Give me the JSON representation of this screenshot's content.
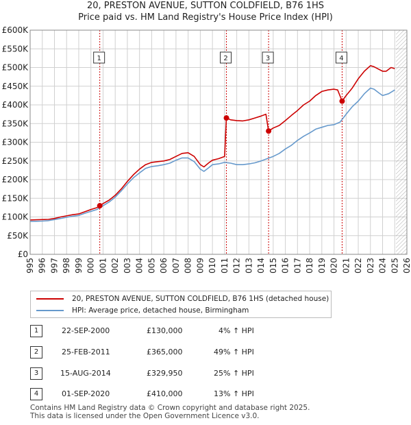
{
  "title": {
    "line1": "20, PRESTON AVENUE, SUTTON COLDFIELD, B76 1HS",
    "line2": "Price paid vs. HM Land Registry's House Price Index (HPI)"
  },
  "colors": {
    "property": "#cc0000",
    "hpi": "#6699cc",
    "grid": "#d0d0d0",
    "plot_bg": "#ffffff",
    "shade": "#ffffff"
  },
  "chart_data": {
    "type": "line",
    "title": "Price paid vs. HM Land Registry's House Price Index (HPI)",
    "xlim": [
      1995,
      2026
    ],
    "ylim": [
      0,
      600000
    ],
    "y_ticks": [
      {
        "value": 0,
        "label": "£0"
      },
      {
        "value": 50000,
        "label": "£50K"
      },
      {
        "value": 100000,
        "label": "£100K"
      },
      {
        "value": 150000,
        "label": "£150K"
      },
      {
        "value": 200000,
        "label": "£200K"
      },
      {
        "value": 250000,
        "label": "£250K"
      },
      {
        "value": 300000,
        "label": "£300K"
      },
      {
        "value": 350000,
        "label": "£350K"
      },
      {
        "value": 400000,
        "label": "£400K"
      },
      {
        "value": 450000,
        "label": "£450K"
      },
      {
        "value": 500000,
        "label": "£500K"
      },
      {
        "value": 550000,
        "label": "£550K"
      },
      {
        "value": 600000,
        "label": "£600K"
      }
    ],
    "x_ticks": [
      "1995",
      "1996",
      "1997",
      "1998",
      "1999",
      "2000",
      "2001",
      "2002",
      "2003",
      "2004",
      "2005",
      "2006",
      "2007",
      "2008",
      "2009",
      "2010",
      "2011",
      "2012",
      "2013",
      "2014",
      "2015",
      "2016",
      "2017",
      "2018",
      "2019",
      "2020",
      "2021",
      "2022",
      "2023",
      "2024",
      "2025",
      "2026"
    ],
    "hatched_after": 2025.1,
    "series": [
      {
        "name": "20, PRESTON AVENUE, SUTTON COLDFIELD, B76 1HS (detached house)",
        "color": "#cc0000",
        "points": [
          [
            1995.0,
            92000
          ],
          [
            1995.5,
            92500
          ],
          [
            1996.0,
            93000
          ],
          [
            1996.5,
            93500
          ],
          [
            1997.0,
            96000
          ],
          [
            1997.5,
            100000
          ],
          [
            1998.0,
            103000
          ],
          [
            1998.5,
            106000
          ],
          [
            1999.0,
            108000
          ],
          [
            1999.5,
            114000
          ],
          [
            2000.0,
            120000
          ],
          [
            2000.5,
            125000
          ],
          [
            2000.73,
            130000
          ],
          [
            2001.0,
            136000
          ],
          [
            2001.5,
            145000
          ],
          [
            2002.0,
            158000
          ],
          [
            2002.5,
            175000
          ],
          [
            2003.0,
            195000
          ],
          [
            2003.5,
            213000
          ],
          [
            2004.0,
            228000
          ],
          [
            2004.5,
            240000
          ],
          [
            2005.0,
            246000
          ],
          [
            2005.5,
            248000
          ],
          [
            2006.0,
            250000
          ],
          [
            2006.5,
            254000
          ],
          [
            2007.0,
            262000
          ],
          [
            2007.5,
            270000
          ],
          [
            2008.0,
            272000
          ],
          [
            2008.5,
            262000
          ],
          [
            2009.0,
            240000
          ],
          [
            2009.3,
            234000
          ],
          [
            2009.7,
            245000
          ],
          [
            2010.0,
            252000
          ],
          [
            2010.5,
            256000
          ],
          [
            2011.0,
            262000
          ],
          [
            2011.15,
            365000
          ],
          [
            2011.5,
            360000
          ],
          [
            2012.0,
            358000
          ],
          [
            2012.5,
            357000
          ],
          [
            2013.0,
            360000
          ],
          [
            2013.5,
            365000
          ],
          [
            2014.0,
            370000
          ],
          [
            2014.4,
            375000
          ],
          [
            2014.62,
            329950
          ],
          [
            2015.0,
            338000
          ],
          [
            2015.5,
            345000
          ],
          [
            2016.0,
            358000
          ],
          [
            2016.5,
            372000
          ],
          [
            2017.0,
            385000
          ],
          [
            2017.5,
            400000
          ],
          [
            2018.0,
            410000
          ],
          [
            2018.5,
            425000
          ],
          [
            2019.0,
            436000
          ],
          [
            2019.5,
            440000
          ],
          [
            2020.0,
            442000
          ],
          [
            2020.3,
            440000
          ],
          [
            2020.67,
            410000
          ],
          [
            2021.0,
            425000
          ],
          [
            2021.5,
            445000
          ],
          [
            2022.0,
            470000
          ],
          [
            2022.5,
            490000
          ],
          [
            2023.0,
            505000
          ],
          [
            2023.3,
            502000
          ],
          [
            2023.7,
            495000
          ],
          [
            2024.0,
            490000
          ],
          [
            2024.3,
            490000
          ],
          [
            2024.7,
            500000
          ],
          [
            2025.0,
            497000
          ]
        ]
      },
      {
        "name": "HPI: Average price, detached house, Birmingham",
        "color": "#6699cc",
        "points": [
          [
            1995.0,
            88000
          ],
          [
            1995.5,
            88500
          ],
          [
            1996.0,
            89000
          ],
          [
            1996.5,
            90000
          ],
          [
            1997.0,
            93000
          ],
          [
            1997.5,
            96000
          ],
          [
            1998.0,
            99000
          ],
          [
            1998.5,
            102000
          ],
          [
            1999.0,
            104000
          ],
          [
            1999.5,
            110000
          ],
          [
            2000.0,
            115000
          ],
          [
            2000.5,
            120000
          ],
          [
            2001.0,
            130000
          ],
          [
            2001.5,
            140000
          ],
          [
            2002.0,
            153000
          ],
          [
            2002.5,
            170000
          ],
          [
            2003.0,
            188000
          ],
          [
            2003.5,
            205000
          ],
          [
            2004.0,
            218000
          ],
          [
            2004.5,
            230000
          ],
          [
            2005.0,
            235000
          ],
          [
            2005.5,
            237000
          ],
          [
            2006.0,
            240000
          ],
          [
            2006.5,
            244000
          ],
          [
            2007.0,
            252000
          ],
          [
            2007.5,
            258000
          ],
          [
            2008.0,
            258000
          ],
          [
            2008.5,
            248000
          ],
          [
            2009.0,
            228000
          ],
          [
            2009.3,
            222000
          ],
          [
            2009.7,
            232000
          ],
          [
            2010.0,
            240000
          ],
          [
            2010.5,
            242000
          ],
          [
            2011.0,
            246000
          ],
          [
            2011.5,
            244000
          ],
          [
            2012.0,
            240000
          ],
          [
            2012.5,
            240000
          ],
          [
            2013.0,
            242000
          ],
          [
            2013.5,
            245000
          ],
          [
            2014.0,
            250000
          ],
          [
            2014.5,
            256000
          ],
          [
            2015.0,
            262000
          ],
          [
            2015.5,
            270000
          ],
          [
            2016.0,
            282000
          ],
          [
            2016.5,
            292000
          ],
          [
            2017.0,
            305000
          ],
          [
            2017.5,
            316000
          ],
          [
            2018.0,
            325000
          ],
          [
            2018.5,
            335000
          ],
          [
            2019.0,
            340000
          ],
          [
            2019.5,
            345000
          ],
          [
            2020.0,
            347000
          ],
          [
            2020.5,
            354000
          ],
          [
            2021.0,
            375000
          ],
          [
            2021.5,
            395000
          ],
          [
            2022.0,
            410000
          ],
          [
            2022.5,
            430000
          ],
          [
            2023.0,
            445000
          ],
          [
            2023.3,
            442000
          ],
          [
            2023.7,
            432000
          ],
          [
            2024.0,
            425000
          ],
          [
            2024.5,
            430000
          ],
          [
            2025.0,
            440000
          ]
        ]
      }
    ],
    "annotations": [
      {
        "label": "1",
        "x": 2000.73,
        "y": 130000
      },
      {
        "label": "2",
        "x": 2011.15,
        "y": 365000
      },
      {
        "label": "3",
        "x": 2014.62,
        "y": 329950
      },
      {
        "label": "4",
        "x": 2020.67,
        "y": 410000
      }
    ]
  },
  "legend": {
    "property_label": "20, PRESTON AVENUE, SUTTON COLDFIELD, B76 1HS (detached house)",
    "hpi_label": "HPI: Average price, detached house, Birmingham"
  },
  "transactions": [
    {
      "num": "1",
      "date": "22-SEP-2000",
      "price": "£130,000",
      "hpi": "4% ↑ HPI"
    },
    {
      "num": "2",
      "date": "25-FEB-2011",
      "price": "£365,000",
      "hpi": "49% ↑ HPI"
    },
    {
      "num": "3",
      "date": "15-AUG-2014",
      "price": "£329,950",
      "hpi": "25% ↑ HPI"
    },
    {
      "num": "4",
      "date": "01-SEP-2020",
      "price": "£410,000",
      "hpi": "13% ↑ HPI"
    }
  ],
  "footer": {
    "line1": "Contains HM Land Registry data © Crown copyright and database right 2025.",
    "line2": "This data is licensed under the Open Government Licence v3.0."
  }
}
